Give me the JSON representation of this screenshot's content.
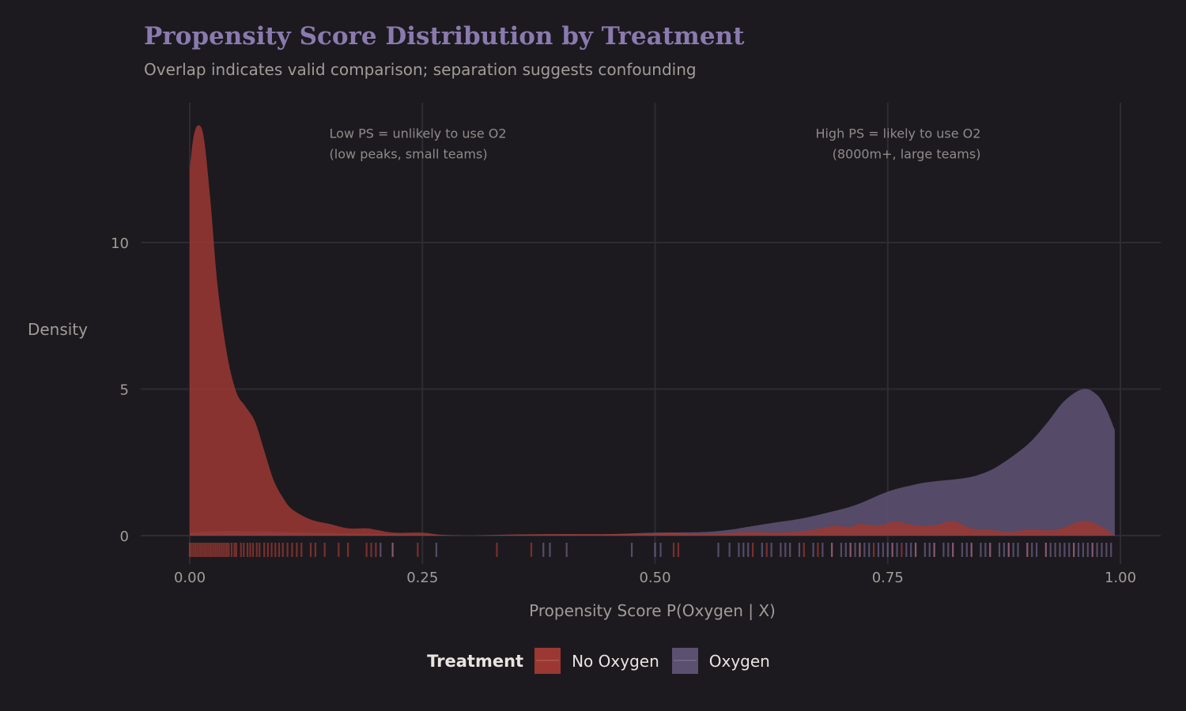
{
  "chart_data": {
    "type": "area",
    "title": "Propensity Score Distribution by Treatment",
    "subtitle": "Overlap indicates valid comparison; separation suggests confounding",
    "xlabel": "Propensity Score P(Oxygen | X)",
    "ylabel": "Density",
    "xlim": [
      -0.05,
      1.05
    ],
    "ylim": [
      -0.7,
      14.8
    ],
    "xticks": [
      "0.00",
      "0.25",
      "0.50",
      "0.75",
      "1.00"
    ],
    "xtick_values": [
      0,
      0.25,
      0.5,
      0.75,
      1.0
    ],
    "yticks": [
      "0",
      "5",
      "10"
    ],
    "ytick_values": [
      0,
      5,
      10
    ],
    "grid": true,
    "legend": {
      "title": "Treatment",
      "placement": "bottom"
    },
    "annotations": [
      {
        "lines": [
          "Low PS = unlikely to use O2",
          "(low peaks, small teams)"
        ],
        "x": 0.15,
        "y": 13.7,
        "align": "left"
      },
      {
        "lines": [
          "High PS = likely to use O2",
          "(8000m+, large teams)"
        ],
        "x": 0.85,
        "y": 13.7,
        "align": "right"
      }
    ],
    "series": [
      {
        "name": "No Oxygen",
        "color": "#9b3832",
        "rug_color": "#e84c3d",
        "x": [
          0,
          0.004,
          0.009,
          0.015,
          0.022,
          0.03,
          0.04,
          0.05,
          0.06,
          0.07,
          0.08,
          0.09,
          0.1,
          0.11,
          0.13,
          0.15,
          0.17,
          0.19,
          0.2,
          0.22,
          0.25,
          0.27,
          0.3,
          0.35,
          0.4,
          0.45,
          0.5,
          0.52,
          0.55,
          0.6,
          0.63,
          0.66,
          0.69,
          0.71,
          0.72,
          0.74,
          0.76,
          0.78,
          0.8,
          0.82,
          0.84,
          0.86,
          0.88,
          0.9,
          0.93,
          0.96,
          0.98,
          0.994
        ],
        "y": [
          12.5,
          13.6,
          14.0,
          13.6,
          11.5,
          8.5,
          6.2,
          4.9,
          4.4,
          3.9,
          2.9,
          1.9,
          1.3,
          0.9,
          0.55,
          0.4,
          0.25,
          0.25,
          0.2,
          0.1,
          0.1,
          0.03,
          0.0,
          0.04,
          0.05,
          0.05,
          0.08,
          0.1,
          0.05,
          0.12,
          0.1,
          0.15,
          0.32,
          0.3,
          0.4,
          0.35,
          0.48,
          0.35,
          0.35,
          0.5,
          0.25,
          0.2,
          0.12,
          0.2,
          0.2,
          0.5,
          0.3,
          0.0
        ],
        "rug": [
          0.0,
          0.002,
          0.004,
          0.006,
          0.008,
          0.01,
          0.012,
          0.014,
          0.016,
          0.018,
          0.02,
          0.022,
          0.024,
          0.026,
          0.028,
          0.03,
          0.032,
          0.034,
          0.036,
          0.038,
          0.04,
          0.042,
          0.045,
          0.048,
          0.05,
          0.055,
          0.058,
          0.062,
          0.065,
          0.068,
          0.072,
          0.075,
          0.08,
          0.084,
          0.088,
          0.092,
          0.096,
          0.1,
          0.105,
          0.11,
          0.115,
          0.12,
          0.13,
          0.135,
          0.145,
          0.16,
          0.17,
          0.19,
          0.195,
          0.2,
          0.218,
          0.245,
          0.33,
          0.367,
          0.52,
          0.525,
          0.605,
          0.62,
          0.66,
          0.675,
          0.69,
          0.71,
          0.72,
          0.735,
          0.755,
          0.765,
          0.78,
          0.8,
          0.82,
          0.84,
          0.86,
          0.88,
          0.9,
          0.92,
          0.95,
          0.97
        ]
      },
      {
        "name": "Oxygen",
        "color": "#5c5070",
        "rug_color": "#9a88c4",
        "x": [
          0,
          0.03,
          0.06,
          0.1,
          0.15,
          0.2,
          0.25,
          0.3,
          0.35,
          0.4,
          0.45,
          0.5,
          0.55,
          0.58,
          0.6,
          0.63,
          0.66,
          0.7,
          0.72,
          0.75,
          0.78,
          0.8,
          0.83,
          0.85,
          0.87,
          0.9,
          0.92,
          0.94,
          0.96,
          0.975,
          0.985,
          0.994
        ],
        "y": [
          0.1,
          0.15,
          0.15,
          0.12,
          0.08,
          0.05,
          0.03,
          0.0,
          0.03,
          0.05,
          0.05,
          0.1,
          0.12,
          0.2,
          0.3,
          0.45,
          0.6,
          0.9,
          1.1,
          1.5,
          1.75,
          1.85,
          1.95,
          2.1,
          2.4,
          3.1,
          3.8,
          4.6,
          5.0,
          4.8,
          4.3,
          3.6
        ],
        "rug": [
          0.205,
          0.218,
          0.265,
          0.38,
          0.387,
          0.405,
          0.475,
          0.5,
          0.506,
          0.568,
          0.58,
          0.59,
          0.595,
          0.6,
          0.615,
          0.625,
          0.635,
          0.64,
          0.645,
          0.655,
          0.67,
          0.68,
          0.69,
          0.7,
          0.705,
          0.71,
          0.715,
          0.72,
          0.725,
          0.73,
          0.74,
          0.745,
          0.75,
          0.755,
          0.76,
          0.77,
          0.775,
          0.78,
          0.79,
          0.795,
          0.8,
          0.81,
          0.815,
          0.82,
          0.83,
          0.835,
          0.84,
          0.85,
          0.855,
          0.86,
          0.87,
          0.875,
          0.88,
          0.885,
          0.89,
          0.9,
          0.905,
          0.91,
          0.92,
          0.925,
          0.93,
          0.935,
          0.94,
          0.945,
          0.95,
          0.955,
          0.96,
          0.965,
          0.97,
          0.975,
          0.98,
          0.985,
          0.99
        ]
      }
    ]
  }
}
